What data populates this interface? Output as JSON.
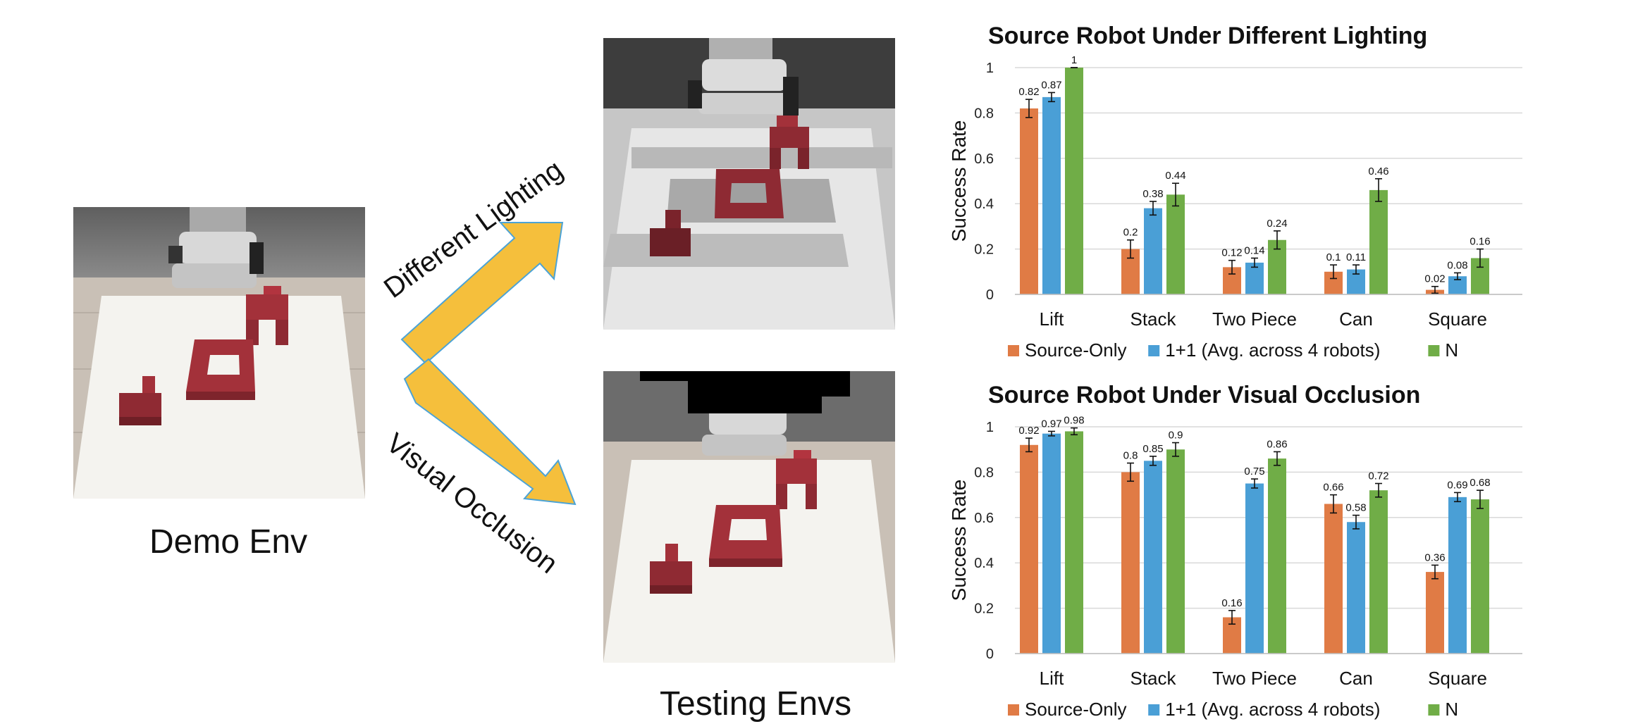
{
  "labels": {
    "demo_env": "Demo Env",
    "testing_envs": "Testing Envs",
    "different_lighting": "Different Lighting",
    "visual_occlusion": "Visual Occlusion"
  },
  "colors": {
    "source_only": "#E07B45",
    "one_plus_one": "#4A9FD6",
    "n": "#70AD47",
    "arrow": "#F5BF3C",
    "arrow_edge": "#4BA3D6",
    "cube": "#A3313A",
    "floor": "#C8BFB4",
    "wall": "#6E6E6E",
    "table": "#F3F2EE"
  },
  "chart_data": [
    {
      "type": "bar",
      "title": "Source Robot Under Different Lighting",
      "ylabel": "Success Rate",
      "xlabel": "",
      "ylim": [
        0,
        1
      ],
      "yticks": [
        "0",
        "0.2",
        "0.4",
        "0.6",
        "0.8",
        "1"
      ],
      "grid": true,
      "legend": "bottom",
      "categories": [
        "Lift",
        "Stack",
        "Two Piece",
        "Can",
        "Square"
      ],
      "series": [
        {
          "name": "Source-Only",
          "values": [
            0.82,
            0.2,
            0.12,
            0.1,
            0.02
          ],
          "labels": [
            "0.82",
            "0.2",
            "0.12",
            "0.1",
            "0.02"
          ],
          "errors": [
            0.04,
            0.04,
            0.03,
            0.03,
            0.015
          ]
        },
        {
          "name": "1+1 (Avg. across 4 robots)",
          "values": [
            0.87,
            0.38,
            0.14,
            0.11,
            0.08
          ],
          "labels": [
            "0.87",
            "0.38",
            "0.14",
            "0.11",
            "0.08"
          ],
          "errors": [
            0.02,
            0.03,
            0.02,
            0.02,
            0.015
          ]
        },
        {
          "name": "N",
          "values": [
            1,
            0.44,
            0.24,
            0.46,
            0.16
          ],
          "labels": [
            "1",
            "0.44",
            "0.24",
            "0.46",
            "0.16"
          ],
          "errors": [
            0.0,
            0.05,
            0.04,
            0.05,
            0.04
          ]
        }
      ]
    },
    {
      "type": "bar",
      "title": "Source Robot Under Visual Occlusion",
      "ylabel": "Success Rate",
      "xlabel": "",
      "ylim": [
        0,
        1
      ],
      "yticks": [
        "0",
        "0.2",
        "0.4",
        "0.6",
        "0.8",
        "1"
      ],
      "grid": true,
      "legend": "bottom",
      "categories": [
        "Lift",
        "Stack",
        "Two Piece",
        "Can",
        "Square"
      ],
      "series": [
        {
          "name": "Source-Only",
          "values": [
            0.92,
            0.8,
            0.16,
            0.66,
            0.36
          ],
          "labels": [
            "0.92",
            "0.8",
            "0.16",
            "0.66",
            "0.36"
          ],
          "errors": [
            0.03,
            0.04,
            0.03,
            0.04,
            0.03
          ]
        },
        {
          "name": "1+1 (Avg. across 4 robots)",
          "values": [
            0.97,
            0.85,
            0.75,
            0.58,
            0.69
          ],
          "labels": [
            "0.97",
            "0.85",
            "0.75",
            "0.58",
            "0.69"
          ],
          "errors": [
            0.01,
            0.02,
            0.02,
            0.03,
            0.02
          ]
        },
        {
          "name": "N",
          "values": [
            0.98,
            0.9,
            0.86,
            0.72,
            0.68
          ],
          "labels": [
            "0.98",
            "0.9",
            "0.86",
            "0.72",
            "0.68"
          ],
          "errors": [
            0.015,
            0.03,
            0.03,
            0.03,
            0.04
          ]
        }
      ]
    }
  ]
}
